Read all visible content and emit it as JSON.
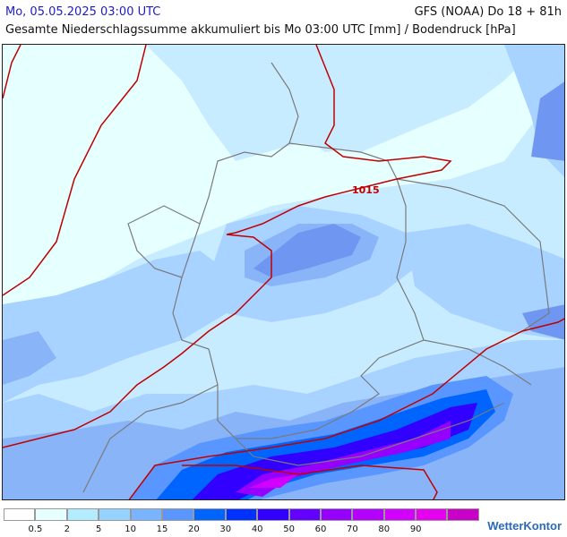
{
  "header": {
    "date_line": "Mo, 05.05.2025 03:00 UTC",
    "model_line": "GFS (NOAA) Do 18 + 81h",
    "subtitle": "Gesamte Niederschlagssumme akkumuliert bis Mo 03:00 UTC [mm] / Bodendruck [hPa]"
  },
  "map": {
    "isobar_label": "1015",
    "colors": {
      "isobar": "#c00000",
      "border": "#7a7a7a",
      "land_lightest": "#e6ffff",
      "very_light": "#c8ecff",
      "light": "#a8d2ff",
      "mid": "#8ab4f8",
      "blue": "#6f96f0"
    }
  },
  "legend": {
    "colors": [
      "#ffffff",
      "#e6ffff",
      "#b4ecff",
      "#96d2ff",
      "#78b4ff",
      "#5a96ff",
      "#0064ff",
      "#0032ff",
      "#3200ff",
      "#6400ff",
      "#9600ff",
      "#b400ff",
      "#d200ff",
      "#e600f0",
      "#c800c8"
    ],
    "labels": [
      "0.5",
      "2",
      "5",
      "10",
      "15",
      "20",
      "30",
      "40",
      "50",
      "60",
      "70",
      "80",
      "90"
    ]
  },
  "brand": {
    "name": "WetterKontor"
  }
}
